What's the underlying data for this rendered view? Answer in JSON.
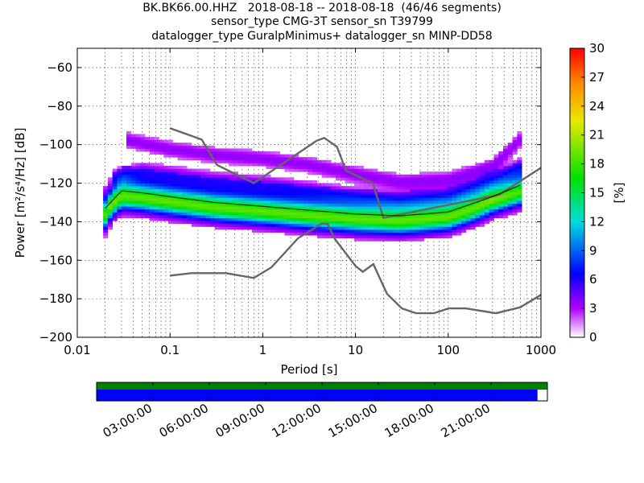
{
  "title_lines": [
    "BK.BK66.00.HHZ   2018-08-18 -- 2018-08-18  (46/46 segments)",
    "sensor_type CMG-3T sensor_sn T39799",
    "datalogger_type GuralpMinimus+ datalogger_sn MINP-DD58"
  ],
  "chart_data": {
    "type": "heatmap",
    "xlabel": "Period [s]",
    "ylabel": "Power [m²/s⁴/Hz] [dB]",
    "xscale": "log",
    "xlim": [
      0.01,
      1000
    ],
    "ylim": [
      -200,
      -50
    ],
    "x_tick_labels": [
      "0.01",
      "0.1",
      "1",
      "10",
      "100",
      "1000"
    ],
    "y_ticks": [
      -60,
      -80,
      -100,
      -120,
      -140,
      -160,
      -180,
      -200
    ],
    "grid": true,
    "colorbar": {
      "label": "[%]",
      "range": [
        0,
        30
      ],
      "ticks": [
        0,
        3,
        6,
        9,
        12,
        15,
        18,
        21,
        24,
        27,
        30
      ]
    },
    "noise_models": [
      {
        "period": [
          0.1,
          0.17,
          0.4,
          0.8,
          1.24,
          2.4,
          4.3,
          5,
          6,
          10,
          12,
          15.6,
          21.9,
          31.6,
          45,
          70,
          101,
          154,
          328,
          600,
          1000
        ],
        "power": [
          -168,
          -166.7,
          -166.7,
          -169.2,
          -163.7,
          -148.6,
          -141.1,
          -141.1,
          -149,
          -163,
          -166,
          -162,
          -177.5,
          -185,
          -187.5,
          -187.5,
          -185,
          -185,
          -187.5,
          -184.4,
          -178
        ]
      },
      {
        "period": [
          0.1,
          0.22,
          0.32,
          0.8,
          3.8,
          4.6,
          6.3,
          7.9,
          15.4,
          20,
          354.8,
          1000
        ],
        "power": [
          -91.5,
          -97.4,
          -110.5,
          -120,
          -98,
          -96.5,
          -101,
          -113.5,
          -120,
          -138,
          -126,
          -112
        ]
      }
    ],
    "mean_curve": {
      "period": [
        0.02,
        0.025,
        0.03,
        0.05,
        0.1,
        0.3,
        1,
        3,
        10,
        30,
        100,
        300,
        600
      ],
      "power": [
        -133,
        -128,
        -124,
        -125,
        -127,
        -130,
        -132,
        -134,
        -136,
        -137,
        -135,
        -127,
        -121
      ]
    },
    "hot_band": {
      "period": [
        0.02,
        0.022,
        0.025,
        0.03,
        0.05,
        0.1,
        0.3,
        1,
        3,
        10,
        30,
        100,
        200,
        300,
        600
      ],
      "power": [
        -138,
        -134,
        -131,
        -128,
        -129,
        -131,
        -134,
        -136,
        -138,
        -140,
        -141,
        -139,
        -134,
        -130,
        -126
      ]
    },
    "upper_bands": [
      {
        "period": [
          0.032,
          0.05,
          0.1,
          0.3,
          1,
          3,
          10,
          30,
          100,
          300,
          600
        ],
        "power": [
          -98,
          -100,
          -103,
          -106,
          -108,
          -111,
          -116,
          -120,
          -119,
          -112,
          -98
        ]
      },
      {
        "period": [
          0.025,
          0.05,
          0.1,
          0.3,
          1,
          3,
          10,
          30,
          100,
          300,
          600
        ],
        "power": [
          -118,
          -114,
          -116,
          -119,
          -121,
          -124,
          -128,
          -131,
          -129,
          -121,
          -112
        ]
      }
    ],
    "timeline": {
      "tick_labels": [
        "03:00:00",
        "06:00:00",
        "09:00:00",
        "12:00:00",
        "15:00:00",
        "18:00:00",
        "21:00:00"
      ],
      "coverage_fraction": 0.978,
      "top_bar_color": "#008000",
      "data_bar_color": "#0000ff"
    }
  }
}
